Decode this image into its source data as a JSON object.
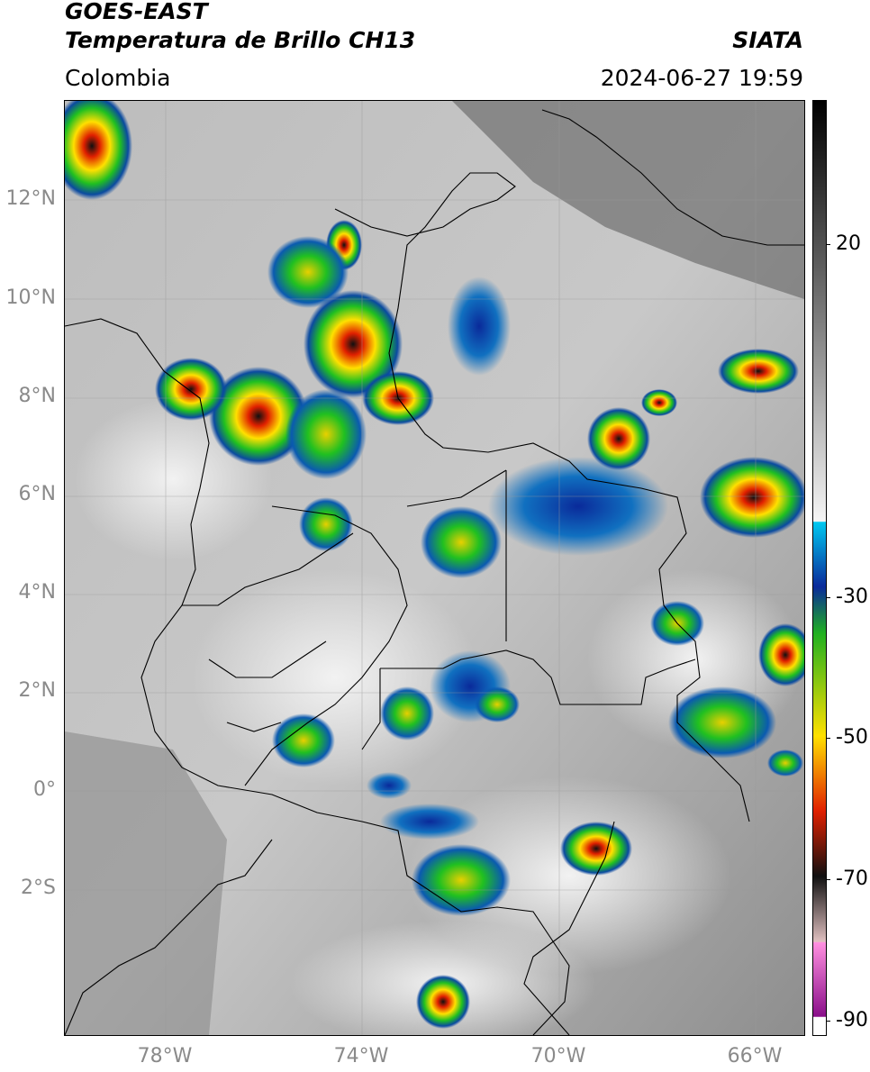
{
  "header": {
    "satellite": "GOES-EAST",
    "product": "Temperatura de Brillo CH13",
    "agency": "SIATA",
    "region": "Colombia",
    "timestamp": "2024-06-27 19:59"
  },
  "axes": {
    "lat_labels": [
      "12°N",
      "10°N",
      "8°N",
      "6°N",
      "4°N",
      "2°N",
      "0°",
      "2°S"
    ],
    "lon_labels": [
      "78°W",
      "74°W",
      "70°W",
      "66°W"
    ],
    "label_color": "#8a8a8a"
  },
  "colorbar": {
    "tick_labels": [
      "20",
      "-30",
      "-50",
      "-70",
      "-90"
    ],
    "palette": {
      "warm_gray": "#d8d8d8",
      "cyan": "#00c8f0",
      "blue": "#0a2a9a",
      "green": "#20c020",
      "yellow": "#ffe000",
      "red": "#e02000",
      "black": "#101010",
      "magenta": "#c030c0"
    }
  }
}
